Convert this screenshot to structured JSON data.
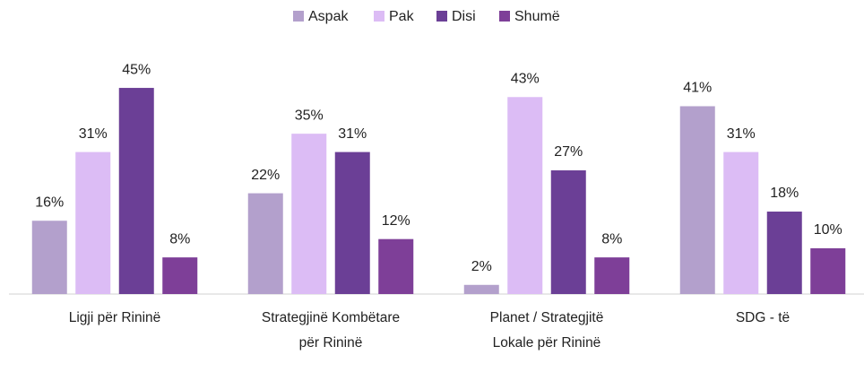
{
  "chart_data": {
    "type": "bar",
    "categories": [
      "Ligji për Rininë",
      "Strategjinë Kombëtare për Rininë",
      "Planet / Strategjitë Lokale për Rininë",
      "SDG - të"
    ],
    "series": [
      {
        "name": "Aspak",
        "color": "#b3a0cc",
        "values": [
          16,
          22,
          2,
          41
        ],
        "value_labels": [
          "16%",
          "22%",
          "2%",
          "41%"
        ]
      },
      {
        "name": "Pak",
        "color": "#dcbcf5",
        "values": [
          31,
          35,
          43,
          31
        ],
        "value_labels": [
          "31%",
          "35%",
          "43%",
          "31%"
        ]
      },
      {
        "name": "Disi",
        "color": "#6b3f96",
        "values": [
          45,
          31,
          27,
          18
        ],
        "value_labels": [
          "45%",
          "31%",
          "27%",
          "18%"
        ]
      },
      {
        "name": "Shumë",
        "color": "#7e3f98",
        "values": [
          8,
          12,
          8,
          10
        ],
        "value_labels": [
          "8%",
          "12%",
          "8%",
          "10%"
        ]
      }
    ],
    "legend": "top"
  }
}
